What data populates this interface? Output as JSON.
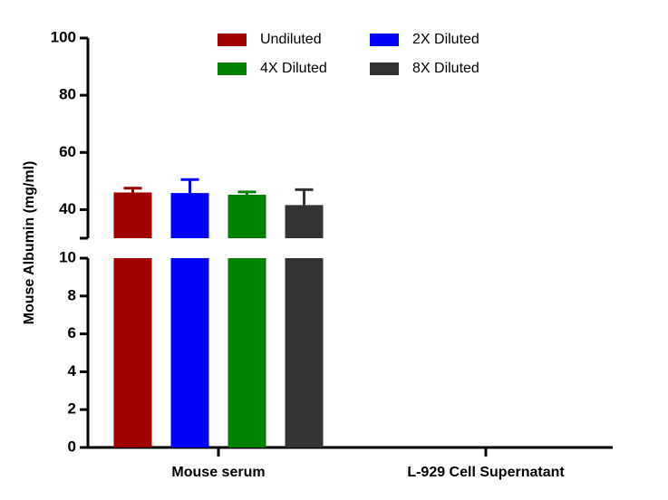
{
  "chart_data": {
    "type": "bar",
    "y_label": "Mouse Albumin (mg/ml)",
    "categories": [
      "Mouse serum",
      "L-929 Cell Supernatant"
    ],
    "series": [
      {
        "name": "Undiluted",
        "color": "#a00000",
        "values": [
          46.0,
          null
        ],
        "errors": [
          1.5,
          null
        ]
      },
      {
        "name": "2X Diluted",
        "color": "#0000ff",
        "values": [
          45.8,
          null
        ],
        "errors": [
          4.7,
          null
        ]
      },
      {
        "name": "4X Diluted",
        "color": "#008000",
        "values": [
          45.2,
          null
        ],
        "errors": [
          1.0,
          null
        ]
      },
      {
        "name": "8X Diluted",
        "color": "#333333",
        "values": [
          41.6,
          null
        ],
        "errors": [
          5.4,
          null
        ]
      }
    ],
    "ylim": [
      0,
      100
    ],
    "ybreak": [
      10,
      30
    ],
    "yticks": [
      0,
      2,
      4,
      6,
      8,
      10,
      40,
      60,
      80,
      100
    ]
  }
}
